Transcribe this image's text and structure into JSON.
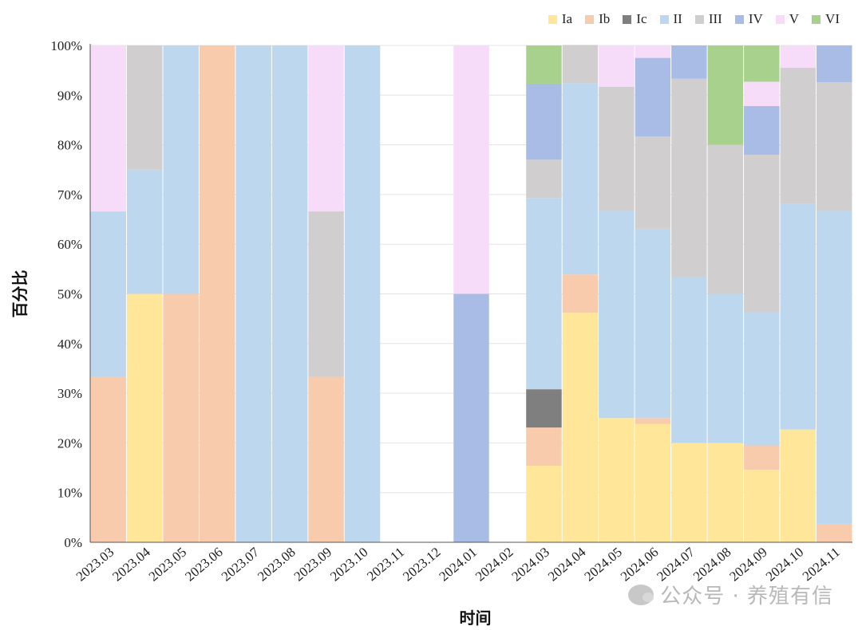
{
  "chart_data": {
    "type": "bar",
    "stacked": true,
    "categories": [
      "2023.03",
      "2023.04",
      "2023.05",
      "2023.06",
      "2023.07",
      "2023.08",
      "2023.09",
      "2023.10",
      "2023.11",
      "2023.12",
      "2024.01",
      "2024.02",
      "2024.03",
      "2024.04",
      "2024.05",
      "2024.06",
      "2024.07",
      "2024.08",
      "2024.09",
      "2024.10",
      "2024.11"
    ],
    "series": [
      {
        "name": "Ia",
        "color": "#FFE699",
        "values": [
          0,
          50,
          0,
          0,
          0,
          0,
          0,
          0,
          0,
          0,
          0,
          0,
          15.4,
          46.2,
          25,
          23.8,
          20,
          20,
          14.6,
          22.7,
          0
        ]
      },
      {
        "name": "Ib",
        "color": "#F8CBAD",
        "values": [
          33.3,
          0,
          50,
          100,
          0,
          0,
          33.3,
          0,
          0,
          0,
          0,
          0,
          7.7,
          7.7,
          0,
          1.2,
          0,
          0,
          4.9,
          0,
          3.7
        ]
      },
      {
        "name": "Ic",
        "color": "#7F7F7F",
        "values": [
          0,
          0,
          0,
          0,
          0,
          0,
          0,
          0,
          0,
          0,
          0,
          0,
          7.7,
          0,
          0,
          0,
          0,
          0,
          0,
          0,
          0
        ]
      },
      {
        "name": "II",
        "color": "#BDD7EE",
        "values": [
          33.3,
          25,
          50,
          0,
          100,
          100,
          0,
          100,
          0,
          0,
          0,
          0,
          38.5,
          38.5,
          41.7,
          38.1,
          33.3,
          30,
          26.8,
          45.5,
          63
        ]
      },
      {
        "name": "III",
        "color": "#D0CECE",
        "values": [
          0,
          25,
          0,
          0,
          0,
          0,
          33.3,
          0,
          0,
          0,
          0,
          0,
          7.7,
          7.7,
          25,
          18.6,
          40,
          30,
          31.7,
          27.3,
          25.9
        ]
      },
      {
        "name": "IV",
        "color": "#A9BCE5",
        "values": [
          0,
          0,
          0,
          0,
          0,
          0,
          0,
          0,
          0,
          0,
          50,
          0,
          15.3,
          0,
          0,
          15.8,
          6.7,
          0,
          9.8,
          0,
          7.4
        ]
      },
      {
        "name": "V",
        "color": "#F6DCF8",
        "values": [
          33.4,
          0,
          0,
          0,
          0,
          0,
          33.4,
          0,
          0,
          0,
          50,
          0,
          0,
          0,
          8.3,
          2.5,
          0,
          0,
          4.9,
          4.5,
          0
        ]
      },
      {
        "name": "VI",
        "color": "#A9D18E",
        "values": [
          0,
          0,
          0,
          0,
          0,
          0,
          0,
          0,
          0,
          0,
          0,
          0,
          7.7,
          0,
          0,
          0,
          0,
          20,
          7.3,
          0,
          0
        ]
      }
    ],
    "xlabel": "时间",
    "ylabel": "百分比",
    "ylim": [
      0,
      100
    ],
    "yticks": [
      "0%",
      "10%",
      "20%",
      "30%",
      "40%",
      "50%",
      "60%",
      "70%",
      "80%",
      "90%",
      "100%"
    ],
    "grid": true,
    "legend_position": "top-right"
  },
  "watermark": "公众号 · 养殖有信"
}
